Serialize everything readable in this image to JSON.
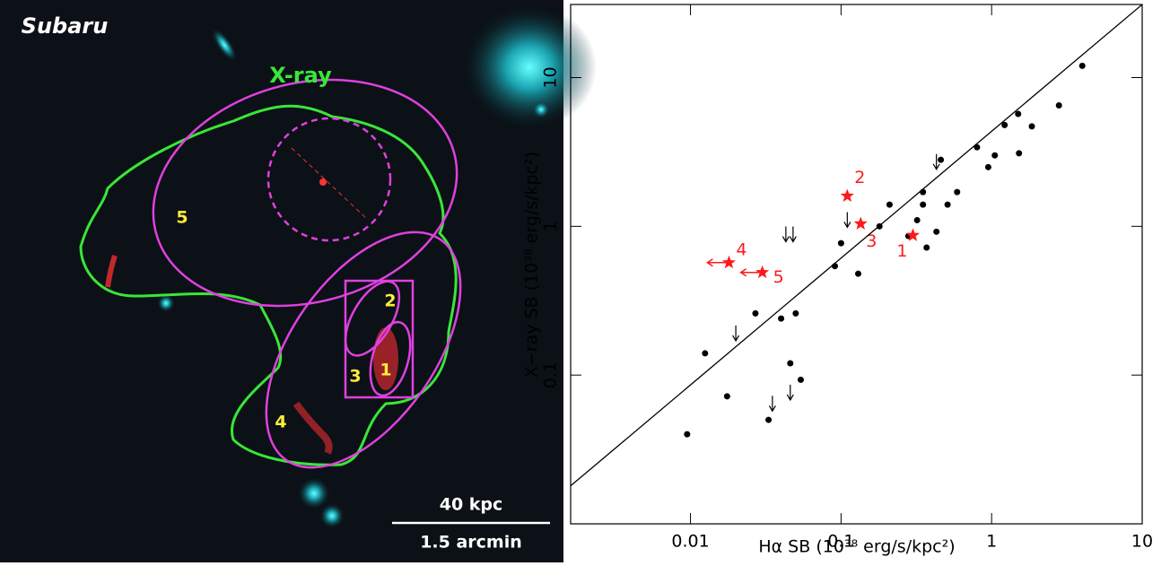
{
  "image": {
    "title": "Subaru",
    "contour_label": "X-ray",
    "region_labels": [
      "1",
      "2",
      "3",
      "4",
      "5"
    ],
    "scale_physical": "40 kpc",
    "scale_angular": "1.5 arcmin"
  },
  "chart_data": {
    "type": "scatter",
    "xlabel": "Hα SB (10³⁸ erg/s/kpc²)",
    "ylabel": "X−ray SB (10³⁸ erg/s/kpc²)",
    "xscale": "log",
    "yscale": "log",
    "xlim": [
      0.0016,
      10
    ],
    "ylim": [
      0.01,
      31
    ],
    "xticks": [
      0.01,
      0.1,
      1,
      10
    ],
    "yticks": [
      0.1,
      1,
      10
    ],
    "series": [
      {
        "marker": "dot",
        "color": "#000000",
        "x": [
          0.0095,
          0.0125,
          0.0175,
          0.027,
          0.033,
          0.04,
          0.046,
          0.05,
          0.054,
          0.091,
          0.1,
          0.13,
          0.18,
          0.21,
          0.28,
          0.32,
          0.35,
          0.35,
          0.37,
          0.43,
          0.46,
          0.51,
          0.59,
          0.8,
          0.95,
          1.05,
          1.22,
          1.5,
          1.52,
          1.85,
          2.8,
          4.0
        ],
        "values": [
          0.04,
          0.14,
          0.072,
          0.26,
          0.05,
          0.24,
          0.12,
          0.26,
          0.093,
          0.54,
          0.77,
          0.48,
          1.0,
          1.4,
          0.86,
          1.1,
          1.7,
          1.4,
          0.72,
          0.92,
          2.8,
          1.4,
          1.7,
          3.4,
          2.5,
          3.0,
          4.8,
          5.7,
          3.1,
          4.7,
          6.5,
          12
        ]
      },
      {
        "marker": "arrow-down",
        "color": "#000000",
        "x": [
          0.11,
          0.02,
          0.043,
          0.048,
          0.046,
          0.035,
          0.43
        ],
        "values": [
          1.1,
          0.19,
          0.88,
          0.88,
          0.076,
          0.064,
          2.7
        ]
      },
      {
        "marker": "star",
        "color": "#ff1a1a",
        "x": [
          0.3,
          0.11,
          0.135,
          0.018,
          0.03
        ],
        "values": [
          0.87,
          1.6,
          1.04,
          0.57,
          0.49
        ],
        "labels": [
          "1",
          "2",
          "3",
          "4",
          "5"
        ],
        "upper_limit_x": [
          false,
          false,
          false,
          true,
          true
        ]
      },
      {
        "marker": "line",
        "color": "#000000",
        "x": [
          0.0016,
          10
        ],
        "values": [
          0.018,
          31
        ]
      }
    ]
  }
}
